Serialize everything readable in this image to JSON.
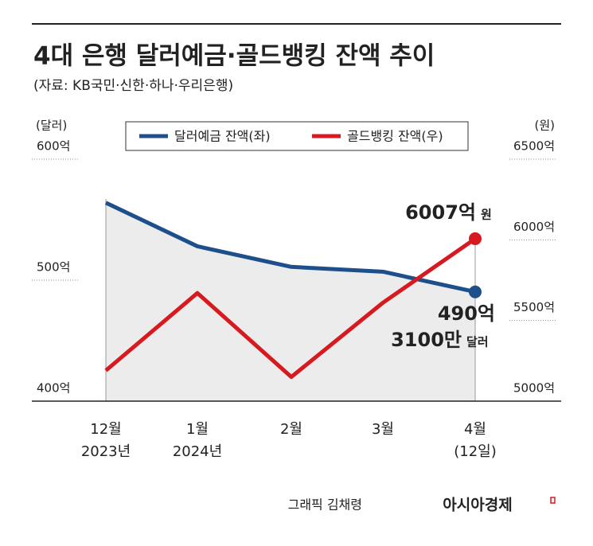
{
  "chart_data": {
    "type": "line",
    "title": "4대 은행 달러예금·골드뱅킹 잔액 추이",
    "subtitle": "(자료: KB국민·신한·하나·우리은행)",
    "y_unit": "(달러)",
    "y2_unit": "(원)",
    "categories": [
      "12월",
      "1월",
      "2월",
      "3월",
      "4월"
    ],
    "sublabels": [
      "2023년",
      "2024년",
      null,
      null,
      "(12일)"
    ],
    "ylim": [
      400,
      600
    ],
    "yticks": [
      {
        "value": 400,
        "label": "400억"
      },
      {
        "value": 500,
        "label": "500억"
      },
      {
        "value": 600,
        "label": "600억"
      }
    ],
    "y2lim": [
      5000,
      6500
    ],
    "y2ticks": [
      {
        "value": 5000,
        "label": "5000억"
      },
      {
        "value": 5500,
        "label": "5500억"
      },
      {
        "value": 6000,
        "label": "6000억"
      },
      {
        "value": 6500,
        "label": "6500억"
      }
    ],
    "series": [
      {
        "name": "달러예금 잔액(좌)",
        "color": "#1d4f8a",
        "values": [
          564,
          528,
          511,
          507,
          490.31
        ],
        "value_label_lines": [
          "490억",
          "3100만",
          "달러"
        ]
      },
      {
        "name": "골드뱅킹 잔액(우)",
        "color": "#d71920",
        "axis": "y2",
        "values": [
          5190,
          5670,
          5150,
          5610,
          6007
        ],
        "value_label_lines": [
          "6007억",
          "원"
        ]
      }
    ],
    "credit": "그래픽 김채령",
    "brand": "아시아경제"
  }
}
